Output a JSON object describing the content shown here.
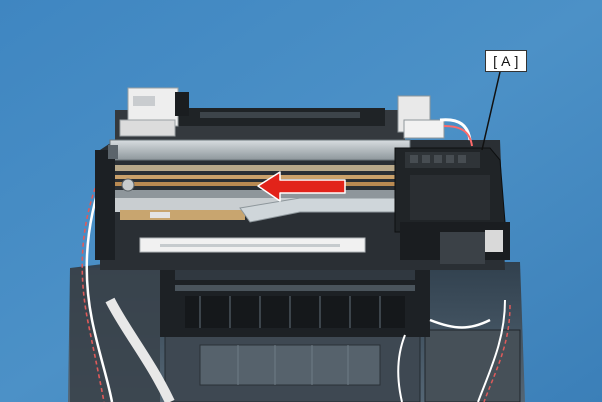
{
  "photo": {
    "subject": "printer-mechanism",
    "background_color": "#4a8ec4",
    "arrow_color": "#e2231a",
    "arrow_direction": "left",
    "callout_label": "[ A ]"
  }
}
